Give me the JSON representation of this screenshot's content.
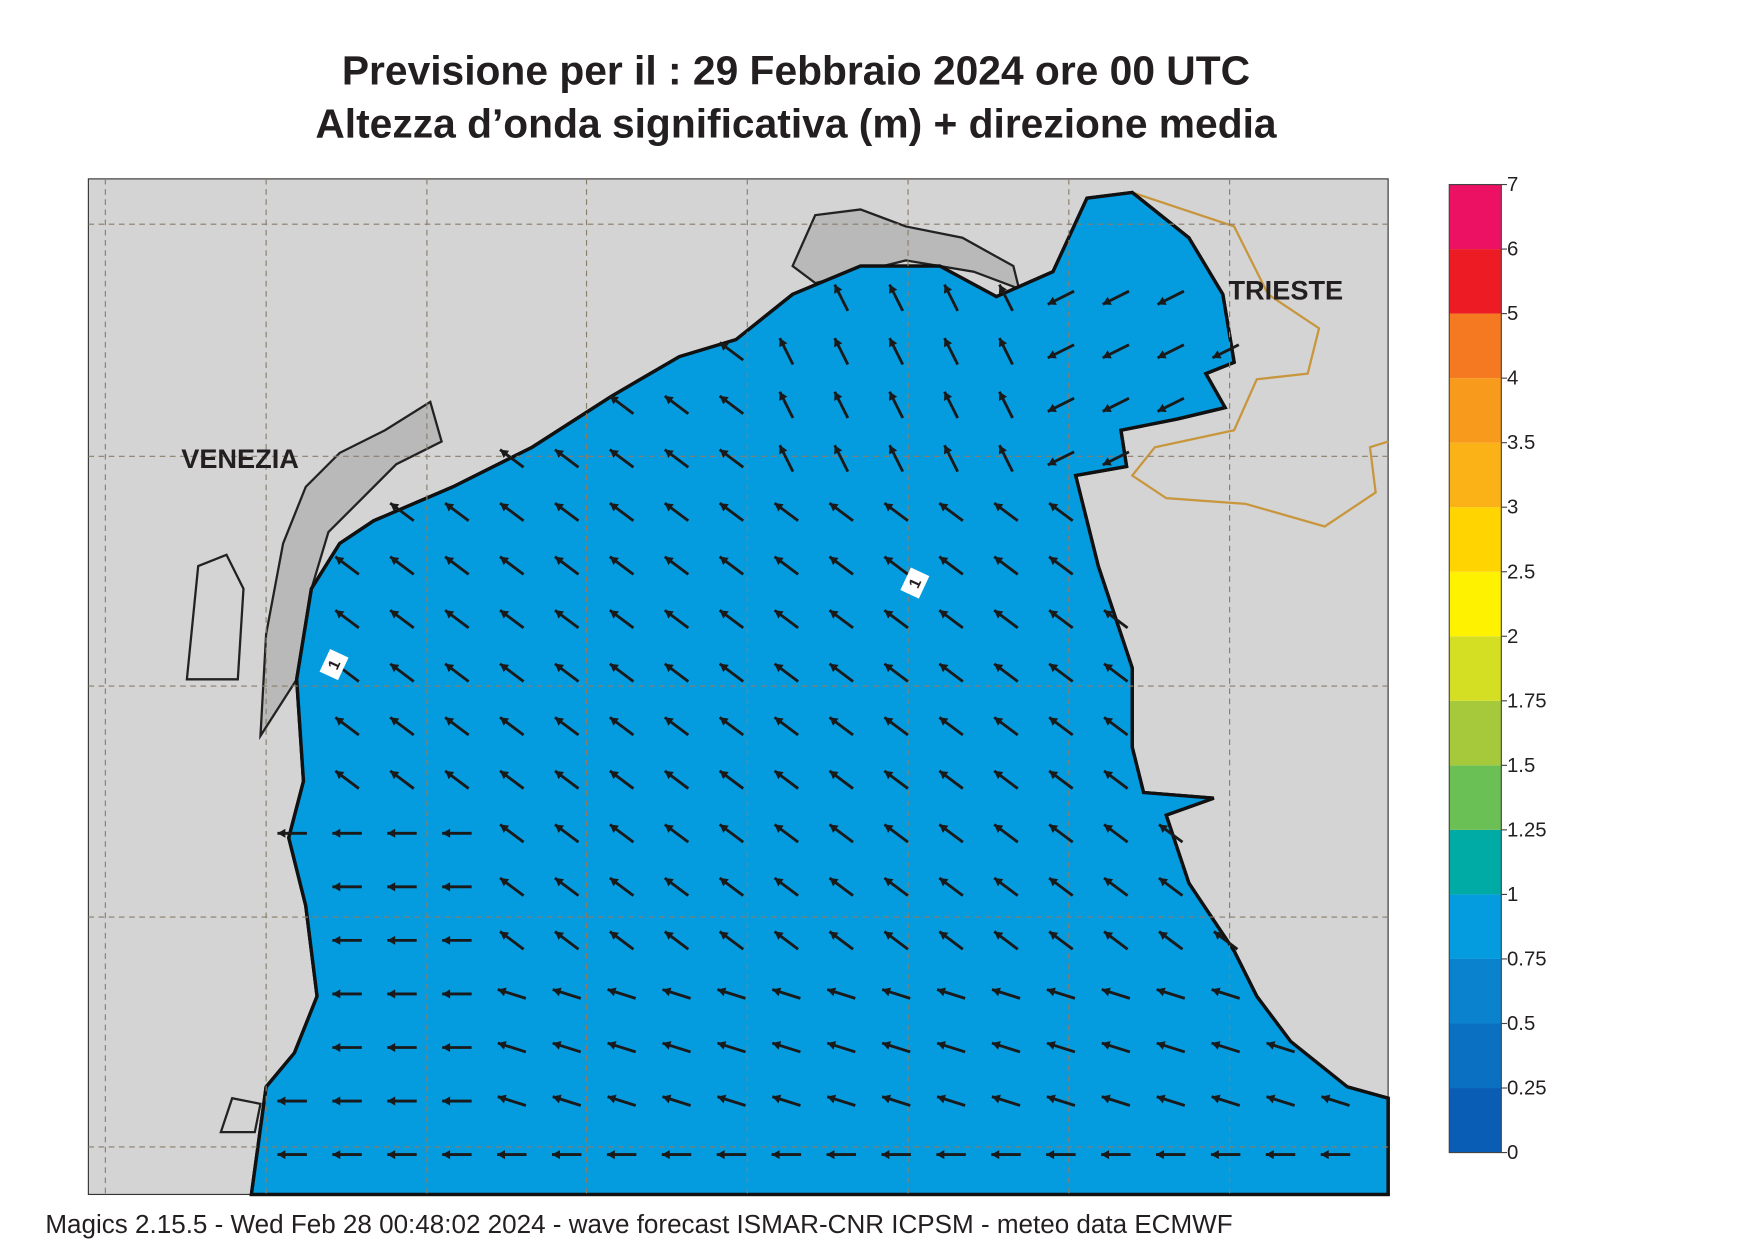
{
  "header": {
    "title": "Previsione per il  :  29  Febbraio 2024   ore 00 UTC",
    "subtitle": "Altezza d’onda significativa (m) + direzione media"
  },
  "map": {
    "places": [
      "VENEZIA",
      "TRIESTE"
    ],
    "contour_labels": [
      "1",
      "1"
    ]
  },
  "legend": {
    "levels": [
      0,
      0.25,
      0.5,
      0.75,
      1,
      1.25,
      1.5,
      1.75,
      2,
      2.5,
      3,
      3.5,
      4,
      5,
      6,
      7
    ],
    "colors": [
      "#0a5db5",
      "#0a70c2",
      "#0b82cd",
      "#049bdf",
      "#00aaa5",
      "#6abf55",
      "#a6c93b",
      "#d4df23",
      "#fff200",
      "#ffd400",
      "#fbb217",
      "#f89a1c",
      "#f47920",
      "#ed1c24",
      "#ec1163"
    ]
  },
  "footer": "Magics 2.15.5 - Wed Feb 28 00:48:02 2024 - wave forecast  ISMAR-CNR  ICPSM - meteo data   ECMWF"
}
